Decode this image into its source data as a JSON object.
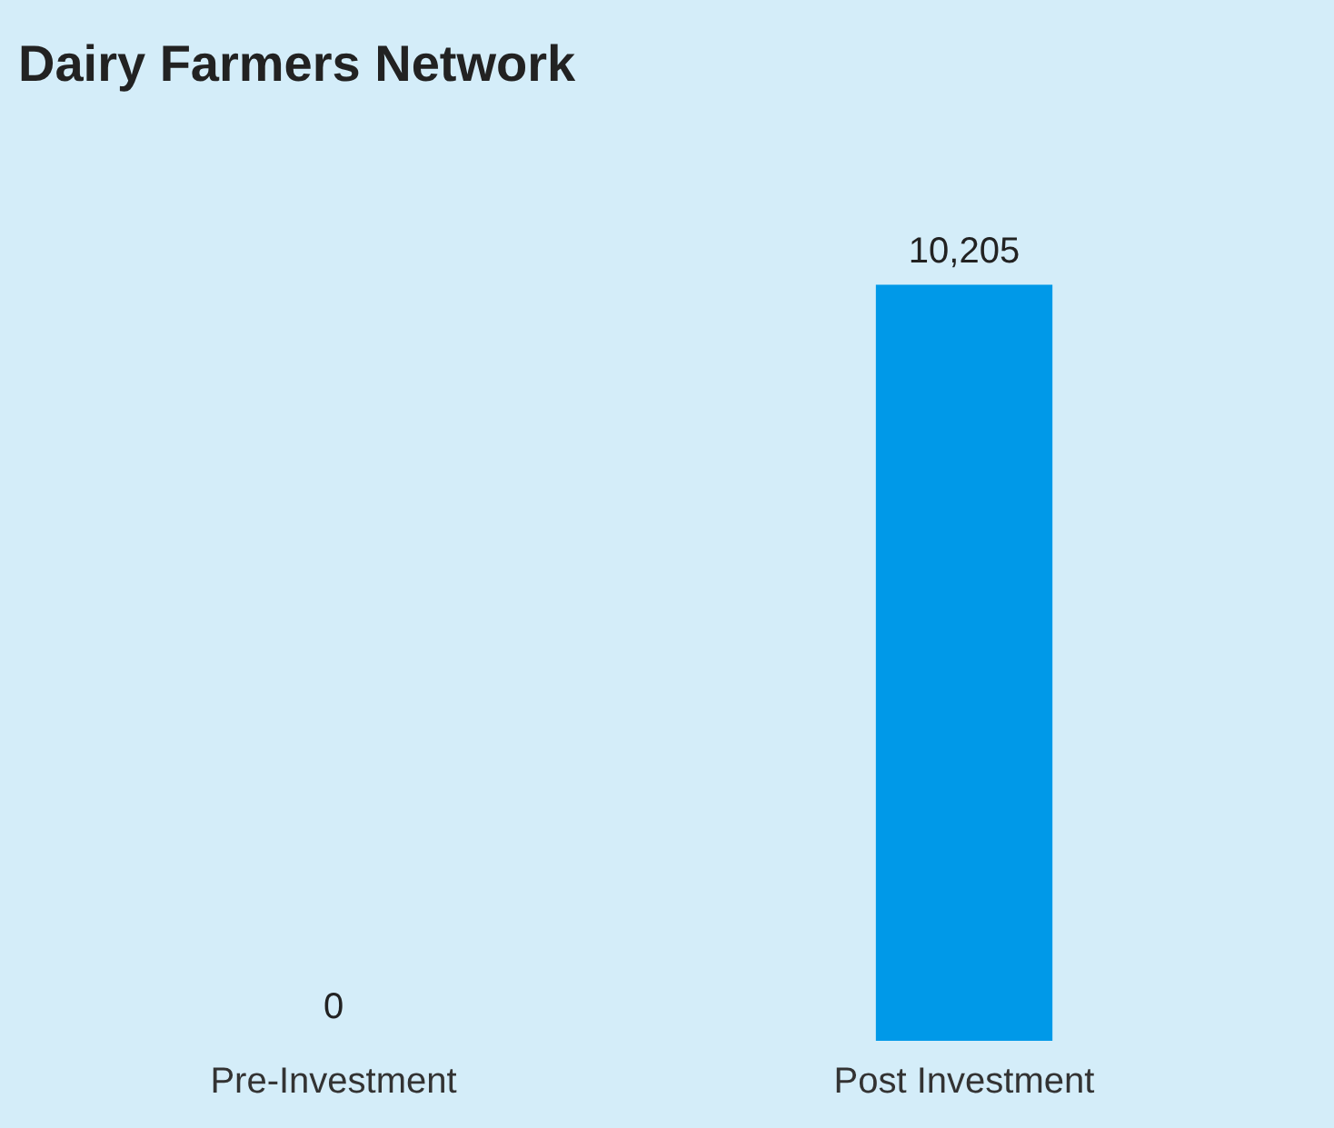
{
  "chart_data": {
    "type": "bar",
    "title": "Dairy Farmers Network",
    "categories": [
      "Pre-Investment",
      "Post Investment"
    ],
    "values": [
      0,
      10205
    ],
    "color": "#0099e8",
    "value_labels": [
      "0",
      "10,205"
    ],
    "grid": false,
    "legend": false
  }
}
